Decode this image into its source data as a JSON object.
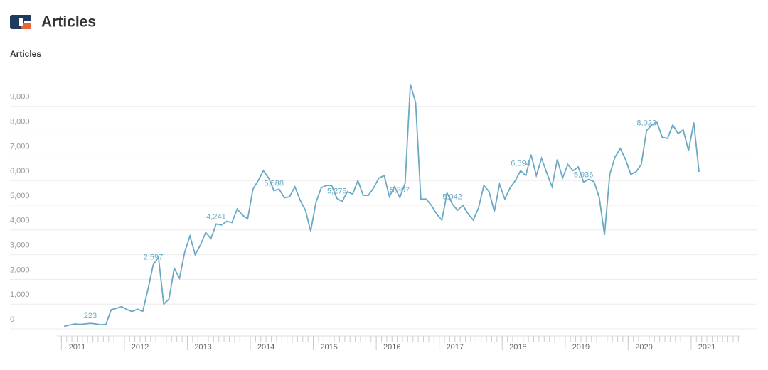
{
  "header": {
    "title": "Articles"
  },
  "chart_data": {
    "type": "line",
    "ylabel": "Articles",
    "categories": [
      "2011",
      null,
      null,
      null,
      null,
      null,
      null,
      null,
      null,
      null,
      null,
      null,
      "2012",
      null,
      null,
      null,
      null,
      null,
      null,
      null,
      null,
      null,
      null,
      null,
      "2013",
      null,
      null,
      null,
      null,
      null,
      null,
      null,
      null,
      null,
      null,
      null,
      "2014",
      null,
      null,
      null,
      null,
      null,
      null,
      null,
      null,
      null,
      null,
      null,
      "2015",
      null,
      null,
      null,
      null,
      null,
      null,
      null,
      null,
      null,
      null,
      null,
      "2016",
      null,
      null,
      null,
      null,
      null,
      null,
      null,
      null,
      null,
      null,
      null,
      "2017",
      null,
      null,
      null,
      null,
      null,
      null,
      null,
      null,
      null,
      null,
      null,
      "2018",
      null,
      null,
      null,
      null,
      null,
      null,
      null,
      null,
      null,
      null,
      null,
      "2019",
      null,
      null,
      null,
      null,
      null,
      null,
      null,
      null,
      null,
      null,
      null,
      "2020",
      null,
      null,
      null,
      null,
      null,
      null,
      null,
      null,
      null,
      null,
      null,
      "2021",
      null
    ],
    "series": [
      {
        "name": "Articles",
        "color": "#6aa9c3",
        "values": [
          100,
          150,
          200,
          180,
          200,
          223,
          200,
          170,
          180,
          780,
          830,
          900,
          780,
          700,
          800,
          700,
          1600,
          2597,
          2900,
          1000,
          1200,
          2450,
          2050,
          3100,
          3750,
          3000,
          3400,
          3900,
          3650,
          4241,
          4200,
          4350,
          4300,
          4850,
          4600,
          4450,
          5650,
          6000,
          6400,
          6100,
          5588,
          5650,
          5300,
          5350,
          5750,
          5200,
          4800,
          3950,
          5100,
          5700,
          5800,
          5800,
          5275,
          5150,
          5550,
          5450,
          6000,
          5400,
          5400,
          5700,
          6100,
          6200,
          5350,
          5750,
          5307,
          5900,
          9900,
          9150,
          5250,
          5250,
          5000,
          4650,
          4400,
          5500,
          5042,
          4800,
          5000,
          4650,
          4400,
          4900,
          5800,
          5550,
          4750,
          5850,
          5250,
          5700,
          6000,
          6394,
          6200,
          7050,
          6200,
          6900,
          6300,
          5750,
          6850,
          6100,
          6650,
          6400,
          6550,
          5936,
          6050,
          5950,
          5300,
          3800,
          6250,
          6950,
          7300,
          6850,
          6250,
          6350,
          6650,
          8023,
          8250,
          8350,
          7750,
          7700,
          8250,
          7900,
          8050,
          7200,
          8350,
          6350
        ],
        "value_labels": [
          null,
          null,
          null,
          null,
          null,
          "223",
          null,
          null,
          null,
          null,
          null,
          null,
          null,
          null,
          null,
          null,
          null,
          "2,597",
          null,
          null,
          null,
          null,
          null,
          null,
          null,
          null,
          null,
          null,
          null,
          "4,241",
          null,
          null,
          null,
          null,
          null,
          null,
          null,
          null,
          null,
          null,
          "5,588",
          null,
          null,
          null,
          null,
          null,
          null,
          null,
          null,
          null,
          null,
          null,
          "5,275",
          null,
          null,
          null,
          null,
          null,
          null,
          null,
          null,
          null,
          null,
          null,
          "5,307",
          null,
          null,
          null,
          null,
          null,
          null,
          null,
          null,
          null,
          "5,042",
          null,
          null,
          null,
          null,
          null,
          null,
          null,
          null,
          null,
          null,
          null,
          null,
          "6,394",
          null,
          null,
          null,
          null,
          null,
          null,
          null,
          null,
          null,
          null,
          null,
          "5,936",
          null,
          null,
          null,
          null,
          null,
          null,
          null,
          null,
          null,
          null,
          null,
          "8,023",
          null,
          null,
          null,
          null,
          null,
          null,
          null,
          null,
          null,
          null
        ]
      }
    ],
    "ylim": [
      0,
      10000
    ],
    "yticks": [
      0,
      {
        "value": 1000,
        "label": "1,000"
      },
      {
        "value": 2000,
        "label": "2,000"
      },
      {
        "value": 3000,
        "label": "3,000"
      },
      {
        "value": 4000,
        "label": "4,000"
      },
      {
        "value": 5000,
        "label": "5,000"
      },
      {
        "value": 6000,
        "label": "6,000"
      },
      {
        "value": 7000,
        "label": "7,000"
      },
      {
        "value": 8000,
        "label": "8,000"
      },
      {
        "value": 9000,
        "label": "9,000"
      }
    ],
    "grid": true
  }
}
